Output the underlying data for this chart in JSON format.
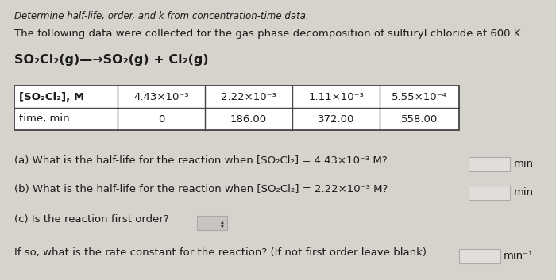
{
  "bg_color": "#d6d2cc",
  "title_line": "Determine half-life, order, and k from concentration-time data.",
  "intro_line": "The following data were collected for the gas phase decomposition of sulfuryl chloride at 600 K.",
  "reaction": "SO₂Cl₂(g)—→SO₂(g) + Cl₂(g)",
  "table_row1_label": "[SO₂Cl₂], M",
  "table_row2_label": "time, min",
  "table_row1_vals": [
    "4.43×10⁻³",
    "2.22×10⁻³",
    "1.11×10⁻³",
    "5.55×10⁻⁴"
  ],
  "table_row2_vals": [
    "0",
    "186.00",
    "372.00",
    "558.00"
  ],
  "q_a": "(a) What is the half-life for the reaction when [SO₂Cl₂] = 4.43×10⁻³ M?",
  "q_b": "(b) What is the half-life for the reaction when [SO₂Cl₂] = 2.22×10⁻³ M?",
  "q_c": "(c) Is the reaction first order?",
  "q_d": "If so, what is the rate constant for the reaction? (If not first order leave blank).",
  "unit_min": "min",
  "unit_min_inv": "min⁻¹",
  "text_color": "#1c1c1c",
  "box_color": "#e2ddd8",
  "box_border": "#aaaaaa",
  "dropdown_color": "#c8c4bf",
  "table_border": "#444444",
  "table_bg": "#ffffff",
  "font_title": 8.5,
  "font_body": 9.5,
  "font_reaction": 11.5
}
